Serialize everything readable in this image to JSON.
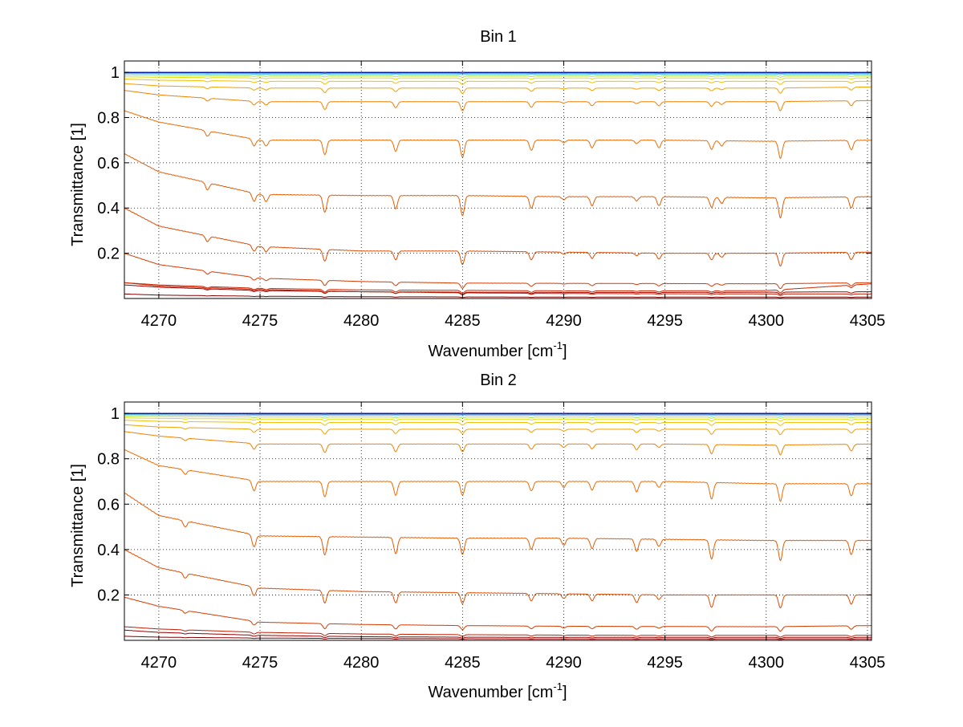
{
  "chart_data": [
    {
      "type": "line",
      "title": "Bin 1",
      "xlabel": "Wavenumber [cm",
      "xlabel_sup": "-1",
      "xlabel_end": "]",
      "ylabel": "Transmittance [1]",
      "xlim": [
        4268.3,
        4305.2
      ],
      "ylim": [
        0.0,
        1.05
      ],
      "grid": true,
      "x_ticks": [
        4270,
        4275,
        4280,
        4285,
        4290,
        4295,
        4300,
        4305
      ],
      "y_ticks": [
        0.2,
        0.4,
        0.6,
        0.8,
        1
      ],
      "x_tick_labels": [
        "4270",
        "4275",
        "4280",
        "4285",
        "4290",
        "4295",
        "4300",
        "4305"
      ],
      "y_tick_labels": [
        "0.2",
        "0.4",
        "0.6",
        "0.8",
        "1"
      ],
      "absorption_lines": [
        {
          "x": 4272.4,
          "rel_depth": 0.35
        },
        {
          "x": 4274.7,
          "rel_depth": 0.4
        },
        {
          "x": 4275.3,
          "rel_depth": 0.35
        },
        {
          "x": 4278.2,
          "rel_depth": 0.85
        },
        {
          "x": 4281.7,
          "rel_depth": 0.65
        },
        {
          "x": 4285.0,
          "rel_depth": 1.0
        },
        {
          "x": 4288.4,
          "rel_depth": 0.6
        },
        {
          "x": 4290.0,
          "rel_depth": 0.15
        },
        {
          "x": 4291.4,
          "rel_depth": 0.45
        },
        {
          "x": 4293.6,
          "rel_depth": 0.2
        },
        {
          "x": 4294.7,
          "rel_depth": 0.45
        },
        {
          "x": 4297.3,
          "rel_depth": 0.5
        },
        {
          "x": 4297.8,
          "rel_depth": 0.3
        },
        {
          "x": 4300.7,
          "rel_depth": 1.0
        },
        {
          "x": 4304.2,
          "rel_depth": 0.55
        }
      ],
      "series": [
        {
          "color": "#800000",
          "values_x": [
            4268.3,
            4270,
            4275,
            4280,
            4285,
            4290,
            4295,
            4300,
            4305.2
          ],
          "values_y": [
            0.02,
            0.015,
            0.01,
            0.008,
            0.007,
            0.006,
            0.006,
            0.006,
            0.006
          ]
        },
        {
          "color": "#9a0000",
          "values_x": [
            4268.3,
            4270,
            4275,
            4280,
            4285,
            4290,
            4295,
            4300,
            4305.2
          ],
          "values_y": [
            0.06,
            0.05,
            0.035,
            0.03,
            0.028,
            0.027,
            0.027,
            0.028,
            0.03
          ]
        },
        {
          "color": "#c41e00",
          "values_x": [
            4268.3,
            4270,
            4275,
            4280,
            4285,
            4290,
            4295,
            4300,
            4305.2
          ],
          "values_y": [
            0.07,
            0.055,
            0.04,
            0.03,
            0.025,
            0.022,
            0.021,
            0.02,
            0.02
          ]
        },
        {
          "color": "#cc2600",
          "values_x": [
            4268.3,
            4270,
            4275,
            4280,
            4285,
            4290,
            4295,
            4300,
            4305.2
          ],
          "values_y": [
            0.07,
            0.06,
            0.045,
            0.038,
            0.036,
            0.034,
            0.034,
            0.035,
            0.065
          ]
        },
        {
          "color": "#d43a00",
          "values_x": [
            4268.3,
            4270,
            4275,
            4280,
            4285,
            4290,
            4295,
            4300,
            4305.2
          ],
          "values_y": [
            0.2,
            0.15,
            0.09,
            0.075,
            0.068,
            0.067,
            0.066,
            0.065,
            0.07
          ]
        },
        {
          "color": "#dd4a00",
          "values_x": [
            4268.3,
            4270,
            4275,
            4280,
            4285,
            4290,
            4295,
            4300,
            4305.2
          ],
          "values_y": [
            0.4,
            0.32,
            0.23,
            0.21,
            0.21,
            0.205,
            0.2,
            0.2,
            0.205
          ]
        },
        {
          "color": "#e55a00",
          "values_x": [
            4268.3,
            4270,
            4275,
            4280,
            4285,
            4290,
            4295,
            4300,
            4305.2
          ],
          "values_y": [
            0.64,
            0.56,
            0.46,
            0.455,
            0.455,
            0.45,
            0.45,
            0.445,
            0.45
          ]
        },
        {
          "color": "#ec6a00",
          "values_x": [
            4268.3,
            4270,
            4275,
            4280,
            4285,
            4290,
            4295,
            4300,
            4305.2
          ],
          "values_y": [
            0.83,
            0.78,
            0.7,
            0.7,
            0.7,
            0.7,
            0.7,
            0.695,
            0.7
          ]
        },
        {
          "color": "#f08000",
          "values_x": [
            4268.3,
            4270,
            4275,
            4280,
            4285,
            4290,
            4295,
            4300,
            4305.2
          ],
          "values_y": [
            0.92,
            0.9,
            0.87,
            0.87,
            0.87,
            0.87,
            0.87,
            0.87,
            0.875
          ]
        },
        {
          "color": "#f2a000",
          "values_x": [
            4268.3,
            4270,
            4275,
            4280,
            4285,
            4290,
            4295,
            4300,
            4305.2
          ],
          "values_y": [
            0.95,
            0.94,
            0.93,
            0.93,
            0.93,
            0.93,
            0.93,
            0.93,
            0.935
          ]
        },
        {
          "color": "#f2c000",
          "values_x": [
            4268.3,
            4270,
            4275,
            4280,
            4285,
            4290,
            4295,
            4300,
            4305.2
          ],
          "values_y": [
            0.97,
            0.965,
            0.96,
            0.96,
            0.96,
            0.96,
            0.96,
            0.96,
            0.96
          ]
        },
        {
          "color": "#e0e000",
          "values_x": [
            4268.3,
            4270,
            4275,
            4280,
            4285,
            4290,
            4295,
            4300,
            4305.2
          ],
          "values_y": [
            0.98,
            0.978,
            0.975,
            0.975,
            0.975,
            0.975,
            0.975,
            0.975,
            0.975
          ]
        },
        {
          "color": "#a8e060",
          "values_x": [
            4268.3,
            4270,
            4275,
            4280,
            4285,
            4290,
            4295,
            4300,
            4305.2
          ],
          "values_y": [
            0.988,
            0.986,
            0.984,
            0.984,
            0.984,
            0.984,
            0.984,
            0.984,
            0.984
          ]
        },
        {
          "color": "#40c8f0",
          "values_x": [
            4268.3,
            4270,
            4275,
            4280,
            4285,
            4290,
            4295,
            4300,
            4305.2
          ],
          "values_y": [
            0.994,
            0.993,
            0.992,
            0.992,
            0.992,
            0.992,
            0.992,
            0.992,
            0.992
          ]
        },
        {
          "color": "#0050c8",
          "values_x": [
            4268.3,
            4270,
            4275,
            4280,
            4285,
            4290,
            4295,
            4300,
            4305.2
          ],
          "values_y": [
            0.998,
            0.998,
            0.997,
            0.997,
            0.997,
            0.997,
            0.997,
            0.997,
            0.997
          ]
        },
        {
          "color": "#00008f",
          "values_x": [
            4268.3,
            4270,
            4275,
            4280,
            4285,
            4290,
            4295,
            4300,
            4305.2
          ],
          "values_y": [
            1.0,
            1.0,
            1.0,
            1.0,
            1.0,
            1.0,
            1.0,
            1.0,
            1.0
          ]
        }
      ]
    },
    {
      "type": "line",
      "title": "Bin 2",
      "xlabel": "Wavenumber [cm",
      "xlabel_sup": "-1",
      "xlabel_end": "]",
      "ylabel": "Transmittance [1]",
      "xlim": [
        4268.3,
        4305.2
      ],
      "ylim": [
        0.0,
        1.05
      ],
      "grid": true,
      "x_ticks": [
        4270,
        4275,
        4280,
        4285,
        4290,
        4295,
        4300,
        4305
      ],
      "y_ticks": [
        0.2,
        0.4,
        0.6,
        0.8,
        1
      ],
      "x_tick_labels": [
        "4270",
        "4275",
        "4280",
        "4285",
        "4290",
        "4295",
        "4300",
        "4305"
      ],
      "y_tick_labels": [
        "0.2",
        "0.4",
        "0.6",
        "0.8",
        "1"
      ],
      "absorption_lines": [
        {
          "x": 4271.3,
          "rel_depth": 0.3
        },
        {
          "x": 4274.7,
          "rel_depth": 0.6
        },
        {
          "x": 4278.2,
          "rel_depth": 0.9
        },
        {
          "x": 4281.7,
          "rel_depth": 0.8
        },
        {
          "x": 4285.0,
          "rel_depth": 0.8
        },
        {
          "x": 4288.4,
          "rel_depth": 0.55
        },
        {
          "x": 4290.0,
          "rel_depth": 0.35
        },
        {
          "x": 4291.4,
          "rel_depth": 0.5
        },
        {
          "x": 4293.6,
          "rel_depth": 0.6
        },
        {
          "x": 4294.7,
          "rel_depth": 0.35
        },
        {
          "x": 4297.3,
          "rel_depth": 0.95
        },
        {
          "x": 4300.7,
          "rel_depth": 1.0
        },
        {
          "x": 4304.2,
          "rel_depth": 0.7
        }
      ],
      "series": [
        {
          "color": "#800000",
          "values_x": [
            4268.3,
            4270,
            4275,
            4280,
            4285,
            4290,
            4295,
            4300,
            4305.2
          ],
          "values_y": [
            0.018,
            0.014,
            0.01,
            0.008,
            0.007,
            0.006,
            0.006,
            0.006,
            0.006
          ]
        },
        {
          "color": "#9a0000",
          "values_x": [
            4268.3,
            4270,
            4275,
            4280,
            4285,
            4290,
            4295,
            4300,
            4305.2
          ],
          "values_y": [
            0.045,
            0.035,
            0.022,
            0.016,
            0.014,
            0.013,
            0.013,
            0.013,
            0.013
          ]
        },
        {
          "color": "#c41e00",
          "values_x": [
            4268.3,
            4270,
            4275,
            4280,
            4285,
            4290,
            4295,
            4300,
            4305.2
          ],
          "values_y": [
            0.06,
            0.05,
            0.035,
            0.028,
            0.025,
            0.023,
            0.022,
            0.022,
            0.022
          ]
        },
        {
          "color": "#d43a00",
          "values_x": [
            4268.3,
            4270,
            4275,
            4280,
            4285,
            4290,
            4295,
            4300,
            4305.2
          ],
          "values_y": [
            0.19,
            0.15,
            0.08,
            0.07,
            0.065,
            0.062,
            0.061,
            0.06,
            0.065
          ]
        },
        {
          "color": "#dd4a00",
          "values_x": [
            4268.3,
            4270,
            4275,
            4280,
            4285,
            4290,
            4295,
            4300,
            4305.2
          ],
          "values_y": [
            0.4,
            0.32,
            0.23,
            0.215,
            0.21,
            0.205,
            0.2,
            0.2,
            0.2
          ]
        },
        {
          "color": "#e55a00",
          "values_x": [
            4268.3,
            4270,
            4275,
            4280,
            4285,
            4290,
            4295,
            4300,
            4305.2
          ],
          "values_y": [
            0.65,
            0.55,
            0.46,
            0.455,
            0.45,
            0.45,
            0.445,
            0.44,
            0.44
          ]
        },
        {
          "color": "#ec6a00",
          "values_x": [
            4268.3,
            4270,
            4275,
            4280,
            4285,
            4290,
            4295,
            4300,
            4305.2
          ],
          "values_y": [
            0.84,
            0.77,
            0.7,
            0.7,
            0.7,
            0.7,
            0.7,
            0.69,
            0.69
          ]
        },
        {
          "color": "#f08000",
          "values_x": [
            4268.3,
            4270,
            4275,
            4280,
            4285,
            4290,
            4295,
            4300,
            4305.2
          ],
          "values_y": [
            0.92,
            0.9,
            0.865,
            0.865,
            0.865,
            0.865,
            0.865,
            0.86,
            0.865
          ]
        },
        {
          "color": "#f2a000",
          "values_x": [
            4268.3,
            4270,
            4275,
            4280,
            4285,
            4290,
            4295,
            4300,
            4305.2
          ],
          "values_y": [
            0.95,
            0.94,
            0.93,
            0.93,
            0.93,
            0.93,
            0.93,
            0.93,
            0.93
          ]
        },
        {
          "color": "#f2c000",
          "values_x": [
            4268.3,
            4270,
            4275,
            4280,
            4285,
            4290,
            4295,
            4300,
            4305.2
          ],
          "values_y": [
            0.97,
            0.965,
            0.96,
            0.96,
            0.96,
            0.96,
            0.96,
            0.96,
            0.96
          ]
        },
        {
          "color": "#e0e000",
          "values_x": [
            4268.3,
            4270,
            4275,
            4280,
            4285,
            4290,
            4295,
            4300,
            4305.2
          ],
          "values_y": [
            0.98,
            0.978,
            0.975,
            0.975,
            0.975,
            0.975,
            0.975,
            0.975,
            0.975
          ]
        },
        {
          "color": "#a8e060",
          "values_x": [
            4268.3,
            4270,
            4275,
            4280,
            4285,
            4290,
            4295,
            4300,
            4305.2
          ],
          "values_y": [
            0.988,
            0.986,
            0.984,
            0.984,
            0.984,
            0.984,
            0.984,
            0.984,
            0.984
          ]
        },
        {
          "color": "#40c8f0",
          "values_x": [
            4268.3,
            4270,
            4275,
            4280,
            4285,
            4290,
            4295,
            4300,
            4305.2
          ],
          "values_y": [
            0.994,
            0.993,
            0.992,
            0.992,
            0.992,
            0.992,
            0.992,
            0.992,
            0.992
          ]
        },
        {
          "color": "#0050c8",
          "values_x": [
            4268.3,
            4270,
            4275,
            4280,
            4285,
            4290,
            4295,
            4300,
            4305.2
          ],
          "values_y": [
            0.998,
            0.998,
            0.997,
            0.997,
            0.997,
            0.997,
            0.997,
            0.997,
            0.997
          ]
        },
        {
          "color": "#00008f",
          "values_x": [
            4268.3,
            4270,
            4275,
            4280,
            4285,
            4290,
            4295,
            4300,
            4305.2
          ],
          "values_y": [
            1.0,
            1.0,
            1.0,
            1.0,
            1.0,
            1.0,
            1.0,
            1.0,
            1.0
          ]
        }
      ]
    }
  ]
}
